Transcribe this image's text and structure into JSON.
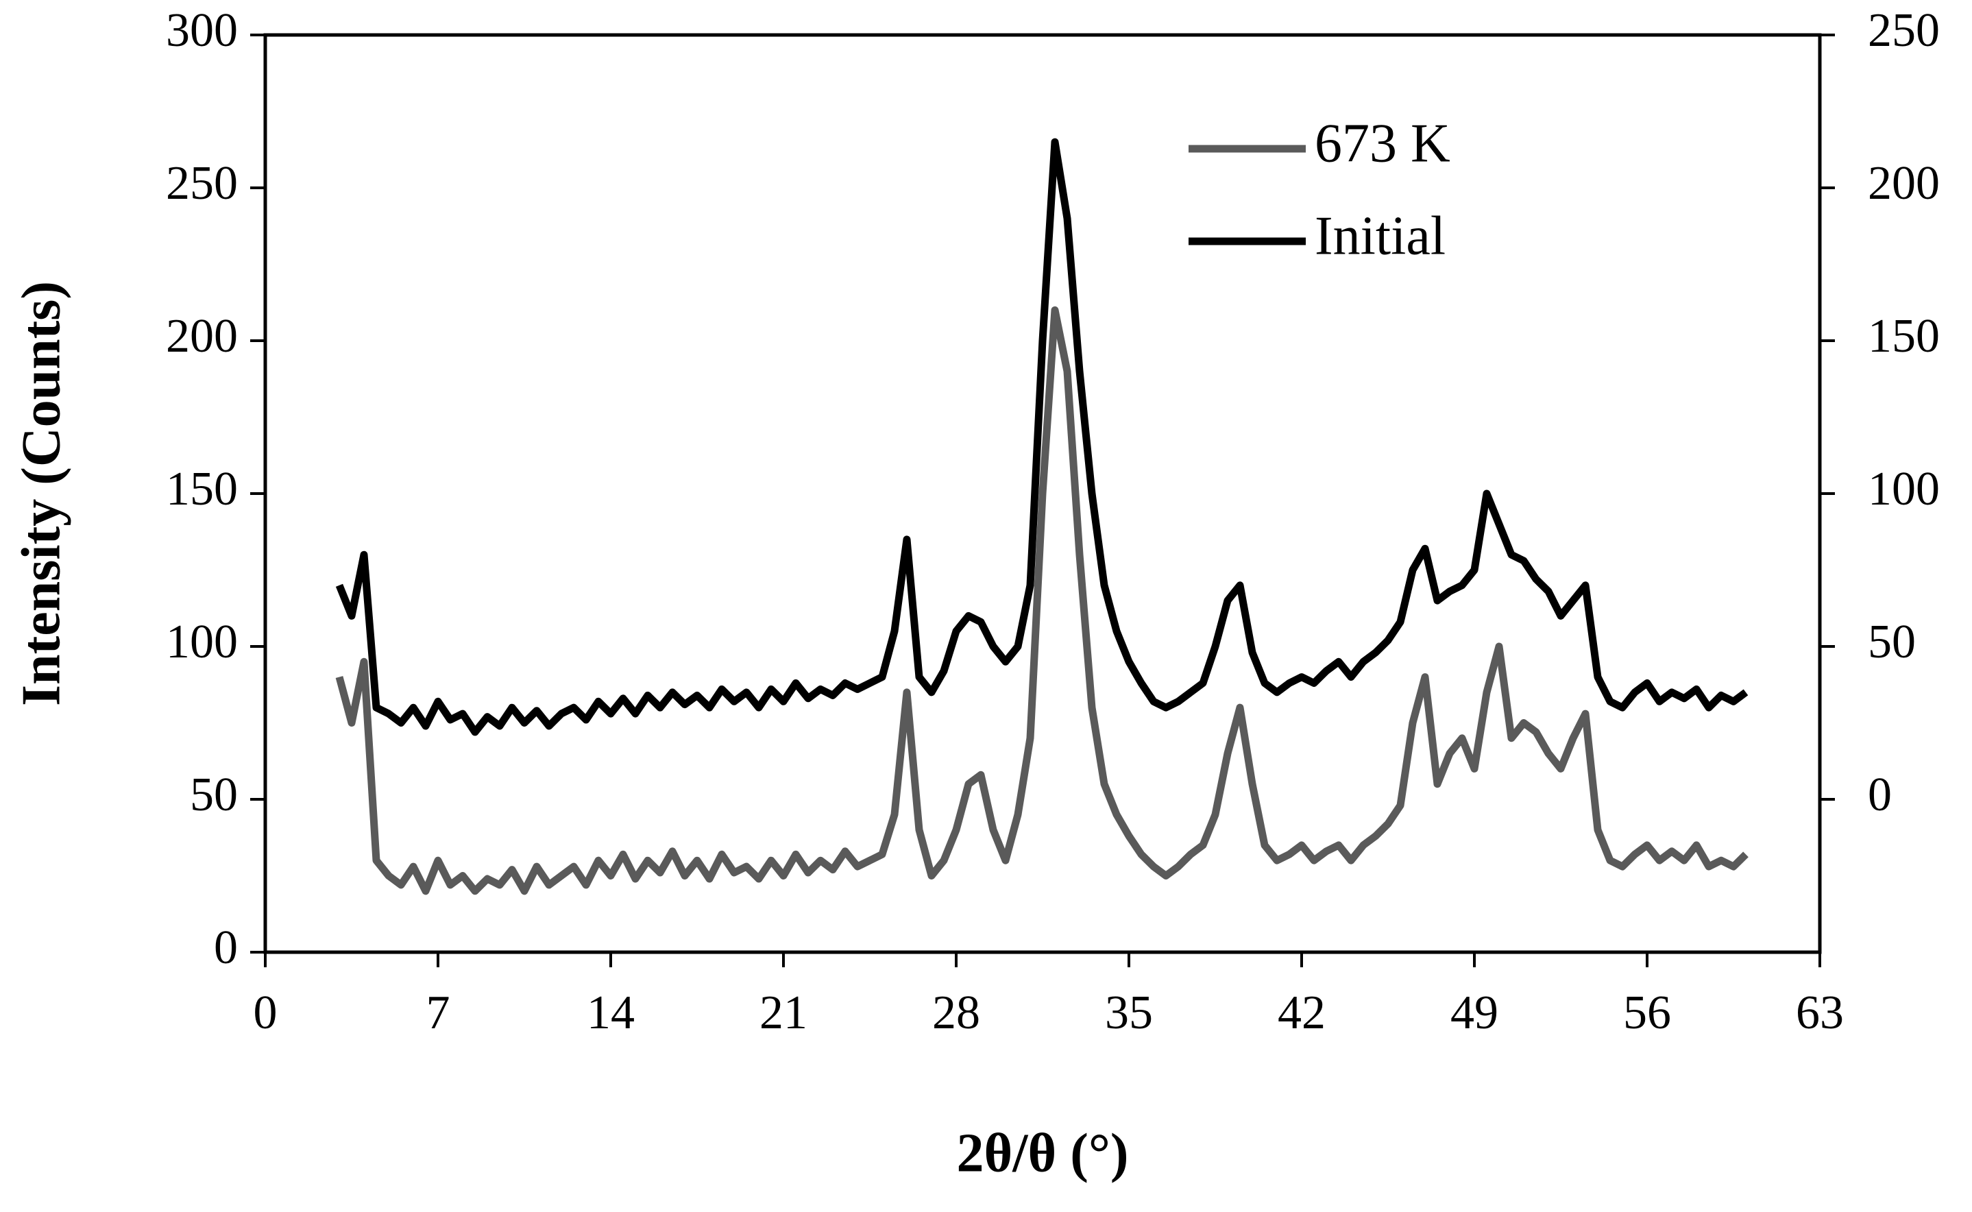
{
  "chart_data": {
    "type": "line",
    "x_label": "2θ/θ (°)",
    "y_label": "Intensity (Counts)",
    "xlim": [
      0,
      63
    ],
    "xticks": [
      0,
      7,
      14,
      21,
      28,
      35,
      42,
      49,
      56,
      63
    ],
    "ylim": [
      0,
      300
    ],
    "yticks": [
      0,
      50,
      100,
      150,
      200,
      250,
      300
    ],
    "y2lim": [
      -50,
      250
    ],
    "y2ticks": [
      0,
      50,
      100,
      150,
      200,
      250
    ],
    "legend": "upper right",
    "x": [
      3,
      3.5,
      4,
      4.5,
      5,
      5.5,
      6,
      6.5,
      7,
      7.5,
      8,
      8.5,
      9,
      9.5,
      10,
      10.5,
      11,
      11.5,
      12,
      12.5,
      13,
      13.5,
      14,
      14.5,
      15,
      15.5,
      16,
      16.5,
      17,
      17.5,
      18,
      18.5,
      19,
      19.5,
      20,
      20.5,
      21,
      21.5,
      22,
      22.5,
      23,
      23.5,
      24,
      24.5,
      25,
      25.5,
      26,
      26.5,
      27,
      27.5,
      28,
      28.5,
      29,
      29.5,
      30,
      30.5,
      31,
      31.5,
      32,
      32.5,
      33,
      33.5,
      34,
      34.5,
      35,
      35.5,
      36,
      36.5,
      37,
      37.5,
      38,
      38.5,
      39,
      39.5,
      40,
      40.5,
      41,
      41.5,
      42,
      42.5,
      43,
      43.5,
      44,
      44.5,
      45,
      45.5,
      46,
      46.5,
      47,
      47.5,
      48,
      48.5,
      49,
      49.5,
      50,
      50.5,
      51,
      51.5,
      52,
      52.5,
      53,
      53.5,
      54,
      54.5,
      55,
      55.5,
      56,
      56.5,
      57,
      57.5,
      58,
      58.5,
      59,
      59.5,
      60
    ],
    "series": [
      {
        "name": "673 K",
        "color": "#5a5a5a",
        "axis": "y",
        "values": [
          90,
          75,
          95,
          30,
          25,
          22,
          28,
          20,
          30,
          22,
          25,
          20,
          24,
          22,
          27,
          20,
          28,
          22,
          25,
          28,
          22,
          30,
          25,
          32,
          24,
          30,
          26,
          33,
          25,
          30,
          24,
          32,
          26,
          28,
          24,
          30,
          25,
          32,
          26,
          30,
          27,
          33,
          28,
          30,
          32,
          45,
          85,
          40,
          25,
          30,
          40,
          55,
          58,
          40,
          30,
          45,
          70,
          150,
          210,
          190,
          130,
          80,
          55,
          45,
          38,
          32,
          28,
          25,
          28,
          32,
          35,
          45,
          65,
          80,
          55,
          35,
          30,
          32,
          35,
          30,
          33,
          35,
          30,
          35,
          38,
          42,
          48,
          75,
          90,
          55,
          65,
          70,
          60,
          85,
          100,
          70,
          75,
          72,
          65,
          60,
          70,
          78,
          40,
          30,
          28,
          32,
          35,
          30,
          33,
          30,
          35,
          28,
          30,
          28,
          32
        ]
      },
      {
        "name": "Initial",
        "color": "#000000",
        "axis": "y2",
        "values": [
          70,
          60,
          80,
          30,
          28,
          25,
          30,
          24,
          32,
          26,
          28,
          22,
          27,
          24,
          30,
          25,
          29,
          24,
          28,
          30,
          26,
          32,
          28,
          33,
          28,
          34,
          30,
          35,
          31,
          34,
          30,
          36,
          32,
          35,
          30,
          36,
          32,
          38,
          33,
          36,
          34,
          38,
          36,
          38,
          40,
          55,
          85,
          40,
          35,
          42,
          55,
          60,
          58,
          50,
          45,
          50,
          70,
          150,
          215,
          190,
          140,
          100,
          70,
          55,
          45,
          38,
          32,
          30,
          32,
          35,
          38,
          50,
          65,
          70,
          48,
          38,
          35,
          38,
          40,
          38,
          42,
          45,
          40,
          45,
          48,
          52,
          58,
          75,
          82,
          65,
          68,
          70,
          75,
          100,
          90,
          80,
          78,
          72,
          68,
          60,
          65,
          70,
          40,
          32,
          30,
          35,
          38,
          32,
          35,
          33,
          36,
          30,
          34,
          32,
          35
        ]
      }
    ]
  }
}
